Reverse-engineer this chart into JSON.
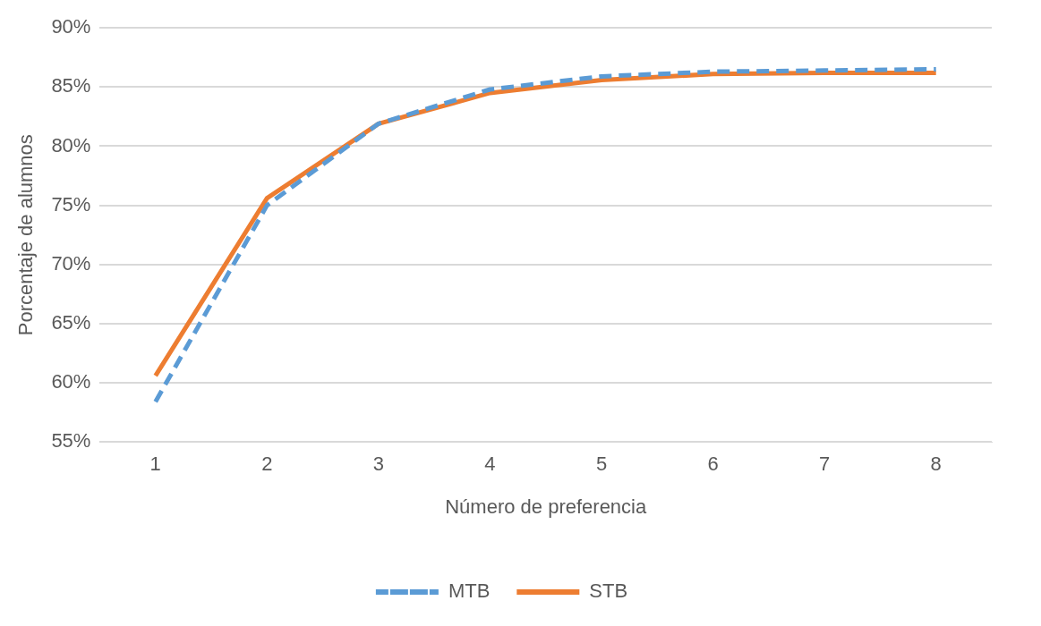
{
  "chart_data": {
    "type": "line",
    "xlabel": "Número de preferencia",
    "ylabel": "Porcentaje de alumnos",
    "categories": [
      "1",
      "2",
      "3",
      "4",
      "5",
      "6",
      "7",
      "8"
    ],
    "series": [
      {
        "name": "MTB",
        "color": "#5b9bd5",
        "line_style": "dashed",
        "values": [
          58.4,
          75.0,
          81.9,
          84.8,
          85.9,
          86.3,
          86.4,
          86.5
        ]
      },
      {
        "name": "STB",
        "color": "#ed7d31",
        "line_style": "solid",
        "values": [
          60.6,
          75.6,
          81.9,
          84.5,
          85.6,
          86.1,
          86.2,
          86.2
        ]
      }
    ],
    "ylim": [
      55,
      90
    ],
    "yticks": [
      {
        "value": 55,
        "label": "55%"
      },
      {
        "value": 60,
        "label": "60%"
      },
      {
        "value": 65,
        "label": "65%"
      },
      {
        "value": 70,
        "label": "70%"
      },
      {
        "value": 75,
        "label": "75%"
      },
      {
        "value": 80,
        "label": "80%"
      },
      {
        "value": 85,
        "label": "85%"
      },
      {
        "value": 90,
        "label": "90%"
      }
    ],
    "grid": "y",
    "legend": "bottom",
    "marker": "none"
  }
}
